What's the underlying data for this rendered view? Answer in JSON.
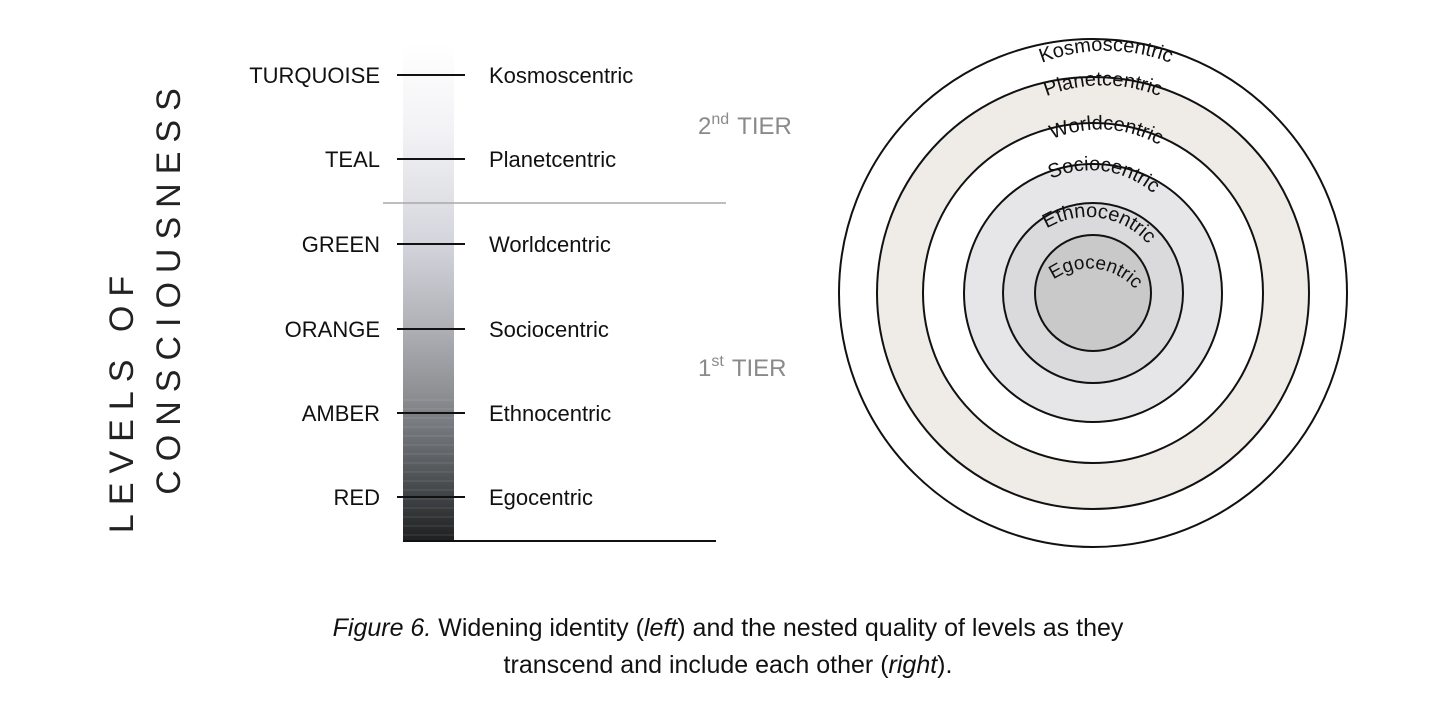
{
  "vertical_title": {
    "line1": "LEVELS OF",
    "line2": "CONSCIOUSNESS"
  },
  "levels": [
    {
      "color_name": "TURQUOISE",
      "identity": "Kosmoscentric"
    },
    {
      "color_name": "TEAL",
      "identity": "Planetcentric"
    },
    {
      "color_name": "GREEN",
      "identity": "Worldcentric"
    },
    {
      "color_name": "ORANGE",
      "identity": "Sociocentric"
    },
    {
      "color_name": "AMBER",
      "identity": "Ethnocentric"
    },
    {
      "color_name": "RED",
      "identity": "Egocentric"
    }
  ],
  "tiers": {
    "second": {
      "number": "2",
      "suffix": "nd",
      "word": "TIER"
    },
    "first": {
      "number": "1",
      "suffix": "st",
      "word": "TIER"
    }
  },
  "rings": [
    {
      "label": "Kosmoscentric",
      "fill": "#ffffff"
    },
    {
      "label": "Planetcentric",
      "fill": "#efebe6"
    },
    {
      "label": "Worldcentric",
      "fill": "#ffffff"
    },
    {
      "label": "Sociocentric",
      "fill": "#e6e6e9"
    },
    {
      "label": "Ethnocentric",
      "fill": "#dadadc"
    },
    {
      "label": "Egocentric",
      "fill": "#c9c9ca"
    }
  ],
  "caption": {
    "figure_label": "Figure 6.",
    "part1": " Widening identity (",
    "left_word": "left",
    "part2": ") and the nested quality of levels as they",
    "part3": "transcend and include each other (",
    "right_word": "right",
    "part4": ")."
  },
  "colors": {
    "text": "#111111",
    "tier_text": "#8a8a8a",
    "divider": "#a9a9a9",
    "gradient_top": "#ffffff",
    "gradient_mid": "#c7c9d2",
    "gradient_bottom": "#1e2020"
  }
}
